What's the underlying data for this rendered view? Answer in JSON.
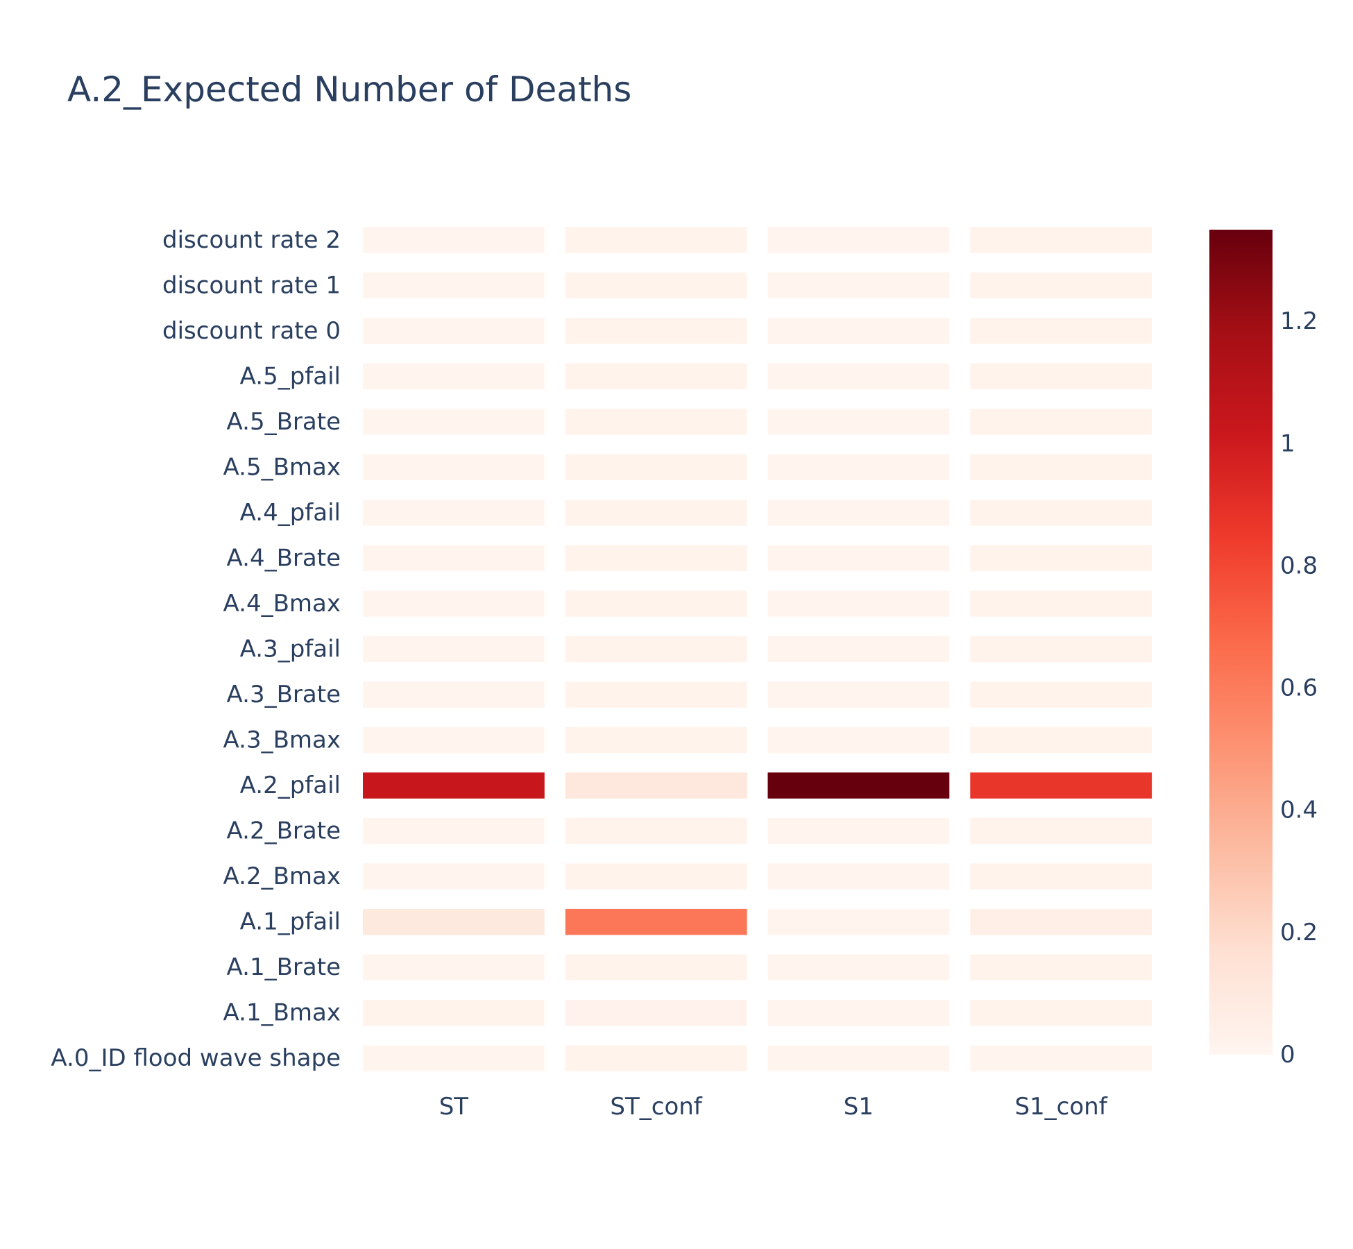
{
  "chart_data": {
    "type": "heatmap",
    "title": "A.2_Expected Number of Deaths",
    "xlabel": "",
    "ylabel": "",
    "x_categories": [
      "ST",
      "ST_conf",
      "S1",
      "S1_conf"
    ],
    "y_categories": [
      "A.0_ID flood wave shape",
      "A.1_Bmax",
      "A.1_Brate",
      "A.1_pfail",
      "A.2_Bmax",
      "A.2_Brate",
      "A.2_pfail",
      "A.3_Bmax",
      "A.3_Brate",
      "A.3_pfail",
      "A.4_Bmax",
      "A.4_Brate",
      "A.4_pfail",
      "A.5_Bmax",
      "A.5_Brate",
      "A.5_pfail",
      "discount rate 0",
      "discount rate 1",
      "discount rate 2"
    ],
    "z": [
      [
        0.01,
        0.02,
        0.01,
        0.01
      ],
      [
        0.02,
        0.03,
        0.01,
        0.02
      ],
      [
        0.01,
        0.02,
        0.01,
        0.02
      ],
      [
        0.1,
        0.62,
        0.01,
        0.05
      ],
      [
        0.01,
        0.02,
        0.01,
        0.02
      ],
      [
        0.01,
        0.02,
        0.01,
        0.02
      ],
      [
        1.03,
        0.11,
        1.35,
        0.87
      ],
      [
        0.01,
        0.02,
        0.01,
        0.02
      ],
      [
        0.01,
        0.02,
        0.01,
        0.02
      ],
      [
        0.01,
        0.02,
        0.01,
        0.02
      ],
      [
        0.01,
        0.02,
        0.01,
        0.02
      ],
      [
        0.01,
        0.02,
        0.01,
        0.02
      ],
      [
        0.01,
        0.02,
        0.01,
        0.02
      ],
      [
        0.01,
        0.02,
        0.01,
        0.02
      ],
      [
        0.01,
        0.02,
        0.01,
        0.02
      ],
      [
        0.01,
        0.02,
        0.01,
        0.02
      ],
      [
        0.01,
        0.02,
        0.01,
        0.02
      ],
      [
        0.01,
        0.02,
        0.01,
        0.02
      ],
      [
        0.01,
        0.02,
        0.01,
        0.02
      ]
    ],
    "zmin": 0,
    "zmax": 1.35,
    "colorscale": "Reds",
    "colorbar": {
      "tick_values": [
        0,
        0.2,
        0.4,
        0.6,
        0.8,
        1,
        1.2
      ],
      "tick_labels": [
        "0",
        "0.2",
        "0.4",
        "0.6",
        "0.8",
        "1",
        "1.2"
      ]
    },
    "grid": false
  }
}
